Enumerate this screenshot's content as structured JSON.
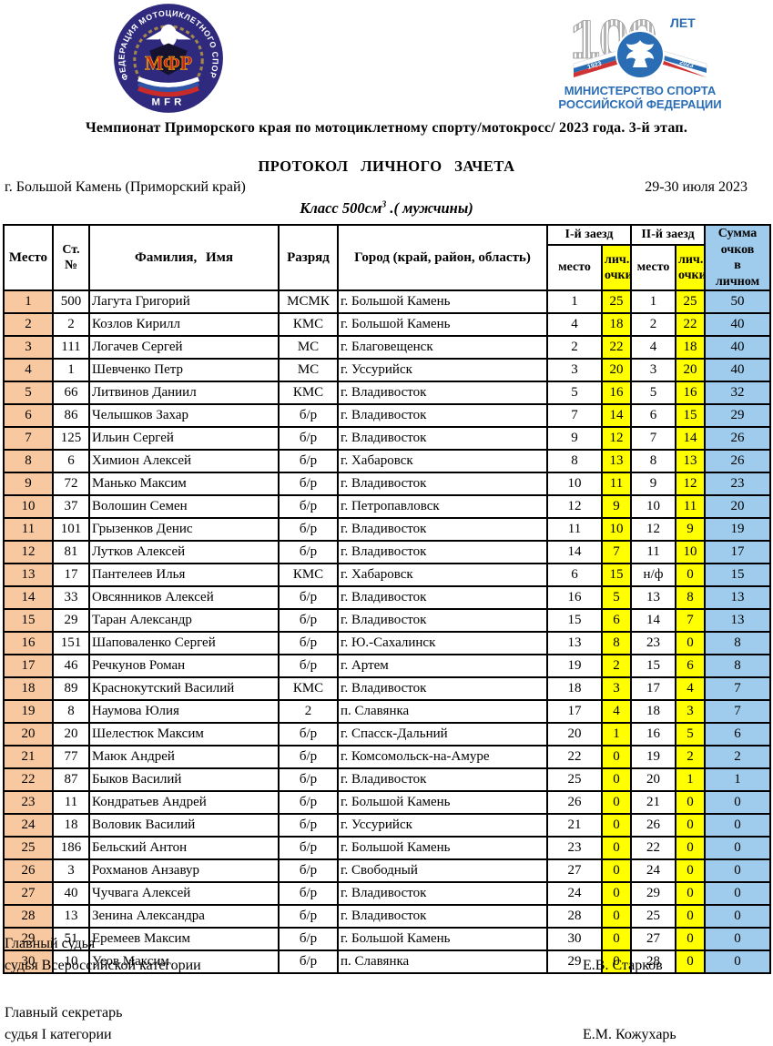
{
  "header": {
    "championship_title": "Чемпионат Приморского края по мотоциклетному спорту/мотокросс/ 2023 года. 3-й этап.",
    "protocol_title": "ПРОТОКОЛ ЛИЧНОГО ЗАЧЕТА",
    "venue": "г. Большой Камень (Приморский край)",
    "dates": "29-30 июля 2023",
    "class_prefix": "Класс 500см",
    "class_sup": "3",
    "class_suffix": " .( мужчины)",
    "mfr_logo": {
      "ring_text": "ФЕДЕРАЦИЯ МОТОЦИКЛЕТНОГО СПОРТА РОССИИ",
      "center": "МФР",
      "bottom": "MFR"
    },
    "ministry_logo": {
      "number": "100",
      "let": "ЛЕТ",
      "year_left": "1923",
      "year_right": "2023",
      "line1": "МИНИСТЕРСТВО СПОРТА",
      "line2": "РОССИЙСКОЙ ФЕДЕРАЦИИ"
    }
  },
  "table": {
    "headers": {
      "place": "Место",
      "start_no_1": "Ст.",
      "start_no_2": "№",
      "name": "Фамилия, Имя",
      "rank": "Разряд",
      "city": "Город (край, район, область)",
      "race1": "I-й заезд",
      "race2": "II-й заезд",
      "sub_place": "место",
      "sub_points_1": "лич.",
      "sub_points_2": "очки",
      "total_lines": [
        "Сумма",
        "очков",
        "в",
        "личном"
      ]
    },
    "rows": [
      [
        "1",
        "500",
        "Лагута Григорий",
        "МСМК",
        "г. Большой Камень",
        "1",
        "25",
        "1",
        "25",
        "50"
      ],
      [
        "2",
        "2",
        "Козлов Кирилл",
        "КМС",
        "г. Большой Камень",
        "4",
        "18",
        "2",
        "22",
        "40"
      ],
      [
        "3",
        "111",
        "Логачев Сергей",
        "МС",
        "г. Благовещенск",
        "2",
        "22",
        "4",
        "18",
        "40"
      ],
      [
        "4",
        "1",
        "Шевченко Петр",
        "МС",
        "г. Уссурийск",
        "3",
        "20",
        "3",
        "20",
        "40"
      ],
      [
        "5",
        "66",
        "Литвинов Даниил",
        "КМС",
        "г. Владивосток",
        "5",
        "16",
        "5",
        "16",
        "32"
      ],
      [
        "6",
        "86",
        "Челышков Захар",
        "б/р",
        "г. Владивосток",
        "7",
        "14",
        "6",
        "15",
        "29"
      ],
      [
        "7",
        "125",
        "Ильин Сергей",
        "б/р",
        "г. Владивосток",
        "9",
        "12",
        "7",
        "14",
        "26"
      ],
      [
        "8",
        "6",
        "Химион Алексей",
        "б/р",
        "г. Хабаровск",
        "8",
        "13",
        "8",
        "13",
        "26"
      ],
      [
        "9",
        "72",
        "Манько Максим",
        "б/р",
        "г. Владивосток",
        "10",
        "11",
        "9",
        "12",
        "23"
      ],
      [
        "10",
        "37",
        "Волошин Семен",
        "б/р",
        "г. Петропавловск",
        "12",
        "9",
        "10",
        "11",
        "20"
      ],
      [
        "11",
        "101",
        "Грызенков Денис",
        "б/р",
        "г. Владивосток",
        "11",
        "10",
        "12",
        "9",
        "19"
      ],
      [
        "12",
        "81",
        "Лутков Алексей",
        "б/р",
        "г. Владивосток",
        "14",
        "7",
        "11",
        "10",
        "17"
      ],
      [
        "13",
        "17",
        "Пантелеев Илья",
        "КМС",
        "г. Хабаровск",
        "6",
        "15",
        "н/ф",
        "0",
        "15"
      ],
      [
        "14",
        "33",
        "Овсянников Алексей",
        "б/р",
        "г. Владивосток",
        "16",
        "5",
        "13",
        "8",
        "13"
      ],
      [
        "15",
        "29",
        "Таран Александр",
        "б/р",
        "г. Владивосток",
        "15",
        "6",
        "14",
        "7",
        "13"
      ],
      [
        "16",
        "151",
        "Шаповаленко Сергей",
        "б/р",
        "г. Ю.-Сахалинск",
        "13",
        "8",
        "23",
        "0",
        "8"
      ],
      [
        "17",
        "46",
        "Речкунов Роман",
        "б/р",
        "г. Артем",
        "19",
        "2",
        "15",
        "6",
        "8"
      ],
      [
        "18",
        "89",
        "Краснокутский Василий",
        "КМС",
        "г. Владивосток",
        "18",
        "3",
        "17",
        "4",
        "7"
      ],
      [
        "19",
        "8",
        "Наумова Юлия",
        "2",
        "п. Славянка",
        "17",
        "4",
        "18",
        "3",
        "7"
      ],
      [
        "20",
        "20",
        "Шелестюк Максим",
        "б/р",
        "г. Спасск-Дальний",
        "20",
        "1",
        "16",
        "5",
        "6"
      ],
      [
        "21",
        "77",
        "Маюк Андрей",
        "б/р",
        "г. Комсомольск-на-Амуре",
        "22",
        "0",
        "19",
        "2",
        "2"
      ],
      [
        "22",
        "87",
        "Быков Василий",
        "б/р",
        "г. Владивосток",
        "25",
        "0",
        "20",
        "1",
        "1"
      ],
      [
        "23",
        "11",
        "Кондратьев Андрей",
        "б/р",
        "г. Большой Камень",
        "26",
        "0",
        "21",
        "0",
        "0"
      ],
      [
        "24",
        "18",
        "Воловик Василий",
        "б/р",
        "г. Уссурийск",
        "21",
        "0",
        "26",
        "0",
        "0"
      ],
      [
        "25",
        "186",
        "Бельский Антон",
        "б/р",
        "г. Большой Камень",
        "23",
        "0",
        "22",
        "0",
        "0"
      ],
      [
        "26",
        "3",
        "Рохманов Анзавур",
        "б/р",
        "г. Свободный",
        "27",
        "0",
        "24",
        "0",
        "0"
      ],
      [
        "27",
        "40",
        "Чучвага Алексей",
        "б/р",
        "г. Владивосток",
        "24",
        "0",
        "29",
        "0",
        "0"
      ],
      [
        "28",
        "13",
        "Зенина Александра",
        "б/р",
        "г. Владивосток",
        "28",
        "0",
        "25",
        "0",
        "0"
      ],
      [
        "29",
        "51",
        "Еремеев Максим",
        "б/р",
        "г. Большой Камень",
        "30",
        "0",
        "27",
        "0",
        "0"
      ],
      [
        "30",
        "10",
        "Усов Максим",
        "б/р",
        "п. Славянка",
        "29",
        "0",
        "28",
        "0",
        "0"
      ]
    ]
  },
  "footer": {
    "judge_role": "Главный судья",
    "judge_category": "судья Всероссийской категории",
    "judge_name": "Е.В. Старков",
    "secretary_role": "Главный секретарь",
    "secretary_category": "судья I категории",
    "secretary_name": "Е.М. Кожухарь"
  },
  "colors": {
    "place_cell": "#f8c9a0",
    "points_cell": "#ffff00",
    "total_cell": "#9fcbec",
    "logo_navy": "#2f2a7e",
    "logo_red": "#cc1f1f",
    "ministry_blue": "#2a6db5"
  }
}
